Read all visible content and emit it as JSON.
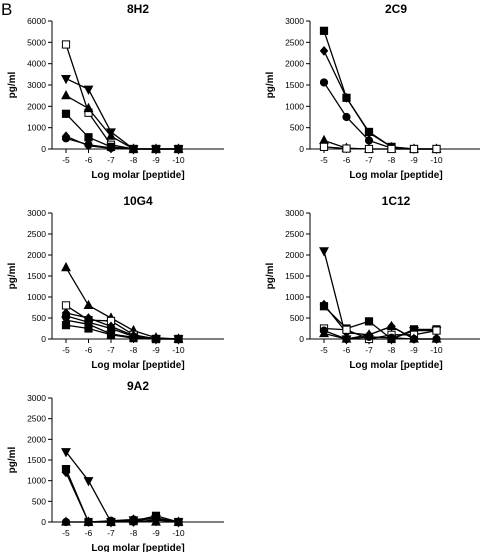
{
  "figure": {
    "panel_letter": "B"
  },
  "chart_data": [
    {
      "type": "line",
      "title": "8H2",
      "xlabel": "Log molar [peptide]",
      "ylabel": "pg/ml",
      "categories": [
        "-5",
        "-6",
        "-7",
        "-8",
        "-9",
        "-10"
      ],
      "ylim": [
        0,
        6000
      ],
      "yticks": [
        "0",
        "1000",
        "2000",
        "3000",
        "4000",
        "5000",
        "6000"
      ],
      "series": [
        {
          "marker": "open-square",
          "values": [
            4900,
            1700,
            200,
            0,
            0,
            0
          ]
        },
        {
          "marker": "down-triangle",
          "values": [
            3300,
            2800,
            800,
            0,
            0,
            0
          ]
        },
        {
          "marker": "up-triangle",
          "values": [
            2500,
            1900,
            600,
            0,
            0,
            0
          ]
        },
        {
          "marker": "square",
          "values": [
            1650,
            550,
            100,
            0,
            0,
            0
          ]
        },
        {
          "marker": "circle",
          "values": [
            500,
            200,
            50,
            0,
            0,
            0
          ]
        },
        {
          "marker": "diamond",
          "values": [
            600,
            150,
            30,
            0,
            0,
            0
          ]
        }
      ]
    },
    {
      "type": "line",
      "title": "2C9",
      "xlabel": "Log molar [peptide]",
      "ylabel": "pg/ml",
      "categories": [
        "-5",
        "-6",
        "-7",
        "-8",
        "-9",
        "-10"
      ],
      "ylim": [
        0,
        3000
      ],
      "yticks": [
        "0",
        "500",
        "1000",
        "1500",
        "2000",
        "2500",
        "3000"
      ],
      "series": [
        {
          "marker": "square",
          "values": [
            2770,
            1200,
            400,
            50,
            0,
            0
          ]
        },
        {
          "marker": "diamond",
          "values": [
            2300,
            1200,
            380,
            50,
            0,
            0
          ]
        },
        {
          "marker": "circle",
          "values": [
            1560,
            750,
            200,
            20,
            0,
            0
          ]
        },
        {
          "marker": "up-triangle",
          "values": [
            200,
            20,
            0,
            0,
            0,
            0
          ]
        },
        {
          "marker": "open-square",
          "values": [
            50,
            10,
            0,
            0,
            0,
            0
          ]
        }
      ]
    },
    {
      "type": "line",
      "title": "10G4",
      "xlabel": "Log molar [peptide]",
      "ylabel": "pg/ml",
      "categories": [
        "-5",
        "-6",
        "-7",
        "-8",
        "-9",
        "-10"
      ],
      "ylim": [
        0,
        3000
      ],
      "yticks": [
        "0",
        "500",
        "1000",
        "1500",
        "2000",
        "2500",
        "3000"
      ],
      "series": [
        {
          "marker": "up-triangle",
          "values": [
            1700,
            800,
            500,
            200,
            30,
            0
          ]
        },
        {
          "marker": "open-square",
          "values": [
            800,
            450,
            430,
            100,
            0,
            0
          ]
        },
        {
          "marker": "diamond",
          "values": [
            620,
            500,
            300,
            80,
            10,
            0
          ]
        },
        {
          "marker": "circle",
          "values": [
            550,
            400,
            250,
            60,
            10,
            0
          ]
        },
        {
          "marker": "down-triangle",
          "values": [
            450,
            350,
            120,
            40,
            0,
            0
          ]
        },
        {
          "marker": "square",
          "values": [
            330,
            250,
            100,
            20,
            0,
            0
          ]
        }
      ]
    },
    {
      "type": "line",
      "title": "1C12",
      "xlabel": "Log molar [peptide]",
      "ylabel": "pg/ml",
      "categories": [
        "-5",
        "-6",
        "-7",
        "-8",
        "-9",
        "-10"
      ],
      "ylim": [
        0,
        3000
      ],
      "yticks": [
        "0",
        "500",
        "1000",
        "1500",
        "2000",
        "2500",
        "3000"
      ],
      "series": [
        {
          "marker": "down-triangle",
          "values": [
            2100,
            0,
            0,
            0,
            200,
            200
          ]
        },
        {
          "marker": "diamond",
          "values": [
            820,
            150,
            100,
            300,
            0,
            0
          ]
        },
        {
          "marker": "square",
          "values": [
            780,
            250,
            420,
            0,
            230,
            230
          ]
        },
        {
          "marker": "open-square",
          "values": [
            250,
            220,
            0,
            100,
            100,
            200
          ]
        },
        {
          "marker": "circle",
          "values": [
            200,
            0,
            50,
            30,
            0,
            0
          ]
        },
        {
          "marker": "up-triangle",
          "values": [
            130,
            0,
            100,
            300,
            0,
            0
          ]
        }
      ]
    },
    {
      "type": "line",
      "title": "9A2",
      "xlabel": "Log molar [peptide]",
      "ylabel": "pg/ml",
      "categories": [
        "-5",
        "-6",
        "-7",
        "-8",
        "-9",
        "-10"
      ],
      "ylim": [
        0,
        3000
      ],
      "yticks": [
        "0",
        "500",
        "1000",
        "1500",
        "2000",
        "2500",
        "3000"
      ],
      "series": [
        {
          "marker": "down-triangle",
          "values": [
            1700,
            1000,
            0,
            50,
            80,
            0
          ]
        },
        {
          "marker": "square",
          "values": [
            1280,
            0,
            0,
            20,
            150,
            0
          ]
        },
        {
          "marker": "diamond",
          "values": [
            1200,
            0,
            0,
            0,
            50,
            0
          ]
        },
        {
          "marker": "circle",
          "values": [
            0,
            0,
            30,
            60,
            100,
            0
          ]
        },
        {
          "marker": "up-triangle",
          "values": [
            0,
            0,
            0,
            50,
            0,
            0
          ]
        }
      ]
    }
  ]
}
